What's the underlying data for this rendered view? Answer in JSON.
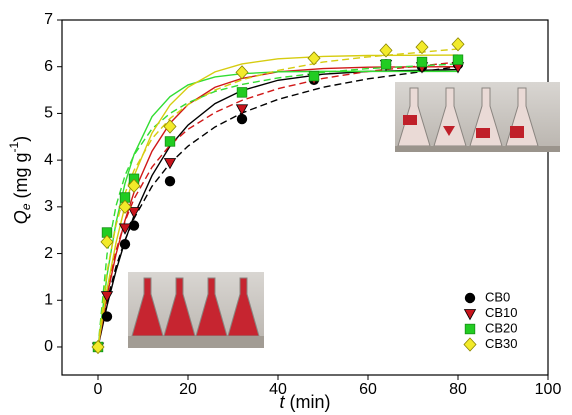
{
  "chart_data": {
    "type": "scatter",
    "xlabel": {
      "symbol": "t",
      "unit": " (min)"
    },
    "ylabel": {
      "symbol": "Q",
      "subscript": "e",
      "unit": " (mg g",
      "superscript": "-1",
      "close": ")"
    },
    "xlim": [
      -8,
      100
    ],
    "ylim": [
      -0.6,
      7
    ],
    "xticks": [
      0,
      20,
      40,
      60,
      80,
      100
    ],
    "yticks": [
      0,
      1,
      2,
      3,
      4,
      5,
      6,
      7
    ],
    "legend": "lower right",
    "x": [
      0,
      2,
      6,
      8,
      16,
      32,
      48,
      64,
      72,
      80
    ],
    "series": [
      {
        "name": "CB0",
        "color": "#000000",
        "marker": "circle",
        "values": [
          0,
          0.65,
          2.2,
          2.6,
          3.55,
          4.88,
          5.72,
          6.05,
          6.0,
          6.05
        ]
      },
      {
        "name": "CB10",
        "color": "#c8141c",
        "marker": "triangle-down",
        "values": [
          0,
          1.1,
          2.55,
          2.9,
          3.95,
          5.1,
          5.75,
          6.05,
          6.0,
          6.0
        ]
      },
      {
        "name": "CB20",
        "color": "#22cc22",
        "marker": "square",
        "values": [
          0,
          2.45,
          3.2,
          3.6,
          4.4,
          5.45,
          5.8,
          6.05,
          6.1,
          6.15
        ]
      },
      {
        "name": "CB30",
        "color": "#f2ea2a",
        "marker": "diamond",
        "values": [
          0,
          2.25,
          3.0,
          3.45,
          4.72,
          5.88,
          6.18,
          6.35,
          6.42,
          6.48
        ]
      }
    ],
    "fits": {
      "x": [
        0,
        2,
        4,
        6,
        8,
        12,
        16,
        20,
        26,
        32,
        40,
        50,
        60,
        80
      ],
      "series": [
        {
          "color": "#000000",
          "dash": false,
          "values": [
            0,
            0.88,
            1.63,
            2.27,
            2.81,
            3.67,
            4.3,
            4.75,
            5.21,
            5.49,
            5.71,
            5.84,
            5.9,
            5.94
          ]
        },
        {
          "color": "#000000",
          "dash": true,
          "values": [
            0,
            0.98,
            1.72,
            2.29,
            2.75,
            3.44,
            3.93,
            4.3,
            4.71,
            5.01,
            5.3,
            5.56,
            5.74,
            6.0
          ]
        },
        {
          "color": "#d01818",
          "dash": false,
          "values": [
            0,
            1.09,
            1.98,
            2.71,
            3.31,
            4.19,
            4.79,
            5.19,
            5.56,
            5.75,
            5.89,
            5.96,
            5.99,
            6.0
          ]
        },
        {
          "color": "#d01818",
          "dash": true,
          "values": [
            0,
            1.22,
            2.06,
            2.69,
            3.17,
            3.85,
            4.32,
            4.66,
            5.02,
            5.28,
            5.53,
            5.75,
            5.9,
            6.1
          ]
        },
        {
          "color": "#33dd33",
          "dash": false,
          "values": [
            0,
            1.53,
            2.66,
            3.5,
            4.12,
            4.93,
            5.36,
            5.61,
            5.78,
            5.85,
            5.89,
            5.9,
            5.9,
            5.9
          ]
        },
        {
          "color": "#33dd33",
          "dash": true,
          "values": [
            0,
            1.98,
            3.02,
            3.67,
            4.11,
            4.67,
            5.0,
            5.23,
            5.47,
            5.62,
            5.76,
            5.88,
            5.96,
            6.06
          ]
        },
        {
          "color": "#d6cc10",
          "dash": false,
          "values": [
            0,
            1.23,
            2.23,
            3.02,
            3.66,
            4.58,
            5.18,
            5.56,
            5.89,
            6.06,
            6.17,
            6.22,
            6.24,
            6.25
          ]
        },
        {
          "color": "#d6cc10",
          "dash": true,
          "values": [
            0,
            1.61,
            2.61,
            3.29,
            3.78,
            4.46,
            4.89,
            5.19,
            5.5,
            5.72,
            5.92,
            6.1,
            6.21,
            6.38
          ]
        }
      ]
    }
  }
}
